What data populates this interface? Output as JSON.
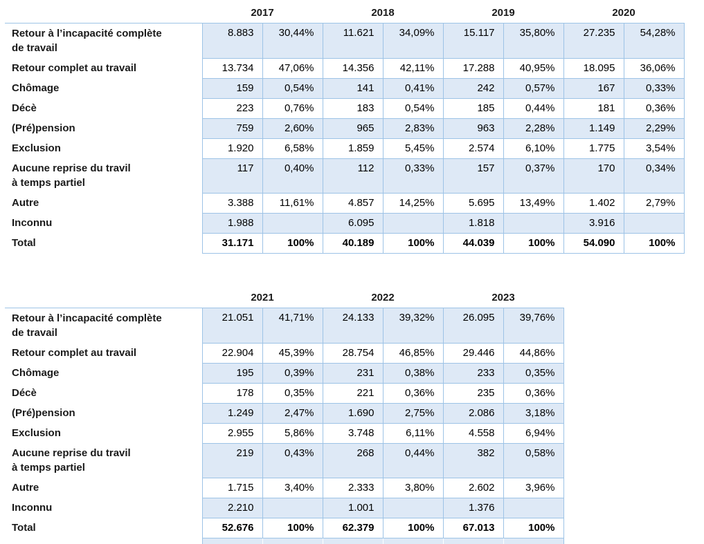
{
  "colors": {
    "fill": "#DEE9F6",
    "border": "#9DC3E6"
  },
  "tables": [
    {
      "name": "results-table-2017-2020",
      "years": [
        "2017",
        "2018",
        "2019",
        "2020"
      ],
      "has_cut_row": false,
      "rows": [
        {
          "lines": [
            "Retour à l’incapacité complète",
            "de travail"
          ],
          "shaded": true,
          "bold": false,
          "cells": [
            "8.883",
            "30,44%",
            "11.621",
            "34,09%",
            "15.117",
            "35,80%",
            "27.235",
            "54,28%"
          ]
        },
        {
          "lines": [
            "Retour complet au travail"
          ],
          "shaded": false,
          "bold": false,
          "cells": [
            "13.734",
            "47,06%",
            "14.356",
            "42,11%",
            "17.288",
            "40,95%",
            "18.095",
            "36,06%"
          ]
        },
        {
          "lines": [
            "Chômage"
          ],
          "shaded": true,
          "bold": false,
          "cells": [
            "159",
            "0,54%",
            "141",
            "0,41%",
            "242",
            "0,57%",
            "167",
            "0,33%"
          ]
        },
        {
          "lines": [
            "Décè"
          ],
          "shaded": false,
          "bold": false,
          "cells": [
            "223",
            "0,76%",
            "183",
            "0,54%",
            "185",
            "0,44%",
            "181",
            "0,36%"
          ]
        },
        {
          "lines": [
            "(Pré)pension"
          ],
          "shaded": true,
          "bold": false,
          "cells": [
            "759",
            "2,60%",
            "965",
            "2,83%",
            "963",
            "2,28%",
            "1.149",
            "2,29%"
          ]
        },
        {
          "lines": [
            "Exclusion"
          ],
          "shaded": false,
          "bold": false,
          "cells": [
            "1.920",
            "6,58%",
            "1.859",
            "5,45%",
            "2.574",
            "6,10%",
            "1.775",
            "3,54%"
          ]
        },
        {
          "lines": [
            "Aucune reprise du travil",
            "à temps partiel"
          ],
          "shaded": true,
          "bold": false,
          "cells": [
            "117",
            "0,40%",
            "112",
            "0,33%",
            "157",
            "0,37%",
            "170",
            "0,34%"
          ]
        },
        {
          "lines": [
            "Autre"
          ],
          "shaded": false,
          "bold": false,
          "cells": [
            "3.388",
            "11,61%",
            "4.857",
            "14,25%",
            "5.695",
            "13,49%",
            "1.402",
            "2,79%"
          ]
        },
        {
          "lines": [
            "Inconnu"
          ],
          "shaded": true,
          "bold": false,
          "cells": [
            "1.988",
            "",
            "6.095",
            "",
            "1.818",
            "",
            "3.916",
            ""
          ]
        },
        {
          "lines": [
            "Total"
          ],
          "shaded": false,
          "bold": true,
          "cells": [
            "31.171",
            "100%",
            "40.189",
            "100%",
            "44.039",
            "100%",
            "54.090",
            "100%"
          ]
        }
      ]
    },
    {
      "name": "results-table-2021-2023",
      "years": [
        "2021",
        "2022",
        "2023"
      ],
      "has_cut_row": true,
      "rows": [
        {
          "lines": [
            "Retour à l’incapacité complète",
            "de travail"
          ],
          "shaded": true,
          "bold": false,
          "cells": [
            "21.051",
            "41,71%",
            "24.133",
            "39,32%",
            "26.095",
            "39,76%"
          ]
        },
        {
          "lines": [
            "Retour complet au travail"
          ],
          "shaded": false,
          "bold": false,
          "cells": [
            "22.904",
            "45,39%",
            "28.754",
            "46,85%",
            "29.446",
            "44,86%"
          ]
        },
        {
          "lines": [
            "Chômage"
          ],
          "shaded": true,
          "bold": false,
          "cells": [
            "195",
            "0,39%",
            "231",
            "0,38%",
            "233",
            "0,35%"
          ]
        },
        {
          "lines": [
            "Décè"
          ],
          "shaded": false,
          "bold": false,
          "cells": [
            "178",
            "0,35%",
            "221",
            "0,36%",
            "235",
            "0,36%"
          ]
        },
        {
          "lines": [
            "(Pré)pension"
          ],
          "shaded": true,
          "bold": false,
          "cells": [
            "1.249",
            "2,47%",
            "1.690",
            "2,75%",
            "2.086",
            "3,18%"
          ]
        },
        {
          "lines": [
            "Exclusion"
          ],
          "shaded": false,
          "bold": false,
          "cells": [
            "2.955",
            "5,86%",
            "3.748",
            "6,11%",
            "4.558",
            "6,94%"
          ]
        },
        {
          "lines": [
            "Aucune reprise du travil",
            "à temps partiel"
          ],
          "shaded": true,
          "bold": false,
          "cells": [
            "219",
            "0,43%",
            "268",
            "0,44%",
            "382",
            "0,58%"
          ]
        },
        {
          "lines": [
            "Autre"
          ],
          "shaded": false,
          "bold": false,
          "cells": [
            "1.715",
            "3,40%",
            "2.333",
            "3,80%",
            "2.602",
            "3,96%"
          ]
        },
        {
          "lines": [
            "Inconnu"
          ],
          "shaded": true,
          "bold": false,
          "cells": [
            "2.210",
            "",
            "1.001",
            "",
            "1.376",
            ""
          ]
        },
        {
          "lines": [
            "Total"
          ],
          "shaded": false,
          "bold": true,
          "cells": [
            "52.676",
            "100%",
            "62.379",
            "100%",
            "67.013",
            "100%"
          ]
        }
      ]
    }
  ]
}
